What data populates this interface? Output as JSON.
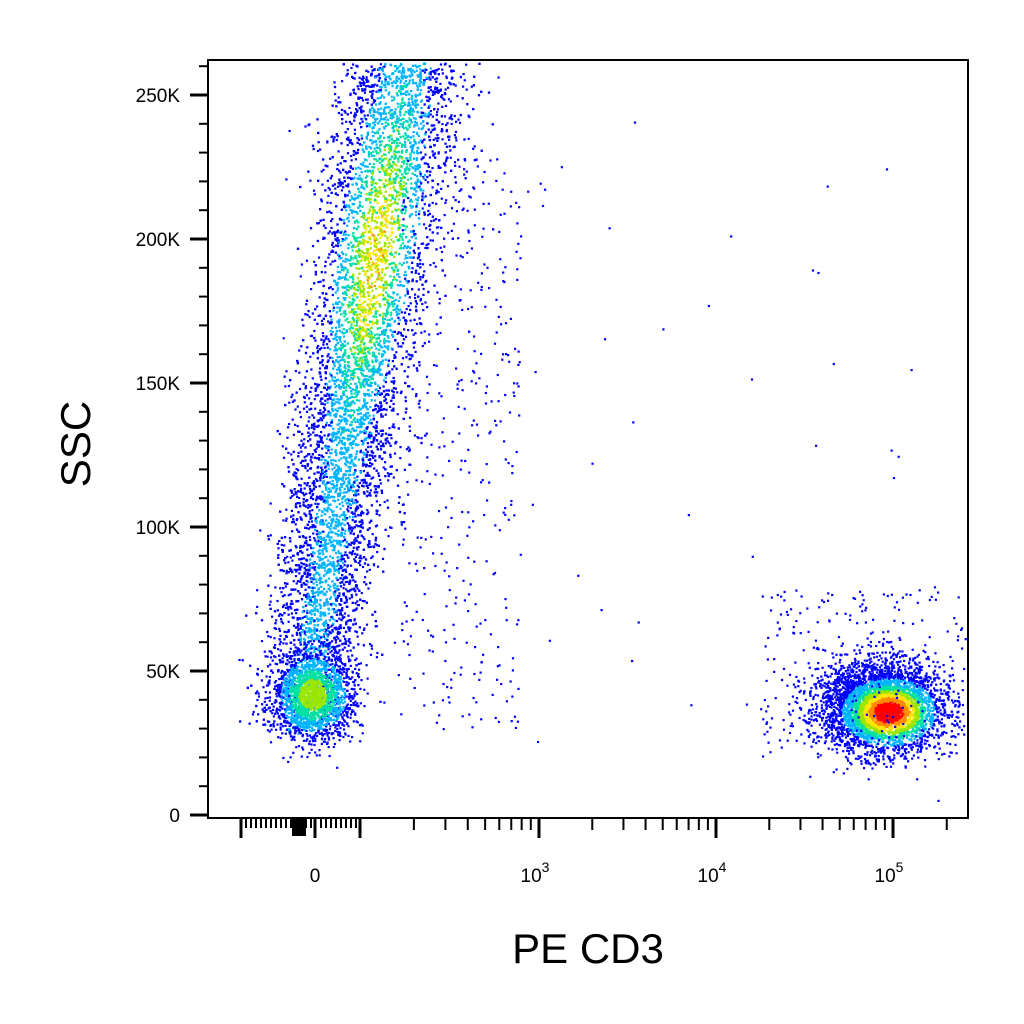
{
  "chart_data": {
    "type": "scatter",
    "subtype": "flow-cytometry pseudocolor density dot plot",
    "xlabel": "PE CD3",
    "ylabel": "SSC",
    "x_scale": "biexponential (log with linear region around 0)",
    "y_scale": "linear",
    "ylim": [
      0,
      262144
    ],
    "y_ticks": [
      {
        "value": 0,
        "label": "0"
      },
      {
        "value": 50000,
        "label": "50K"
      },
      {
        "value": 100000,
        "label": "100K"
      },
      {
        "value": 150000,
        "label": "150K"
      },
      {
        "value": 200000,
        "label": "200K"
      },
      {
        "value": 250000,
        "label": "250K"
      }
    ],
    "x_ticks": [
      {
        "value": 0,
        "base": "0",
        "exp": ""
      },
      {
        "value": 1000,
        "base": "10",
        "exp": "3"
      },
      {
        "value": 10000,
        "base": "10",
        "exp": "4"
      },
      {
        "value": 100000,
        "base": "10",
        "exp": "5"
      }
    ],
    "color_scale": [
      "#0000ff",
      "#00b4ff",
      "#00e0a0",
      "#9be600",
      "#ffe600",
      "#ff8c00",
      "#ff0000"
    ],
    "populations": [
      {
        "description": "CD3-negative events (PE CD3 near 0, broad SSC)",
        "x_center": 150,
        "ssc_range": [
          25000,
          262144
        ],
        "densest_ssc": 190000,
        "peak_color": "yellow"
      },
      {
        "description": "CD3-negative low-SSC events",
        "x_center": 0,
        "ssc_center": 42000,
        "peak_color": "green"
      },
      {
        "description": "CD3-positive events",
        "x_center": 80000,
        "ssc_center": 38000,
        "ssc_range": [
          15000,
          80000
        ],
        "peak_color": "red"
      }
    ],
    "grid": false,
    "legend": "none"
  }
}
